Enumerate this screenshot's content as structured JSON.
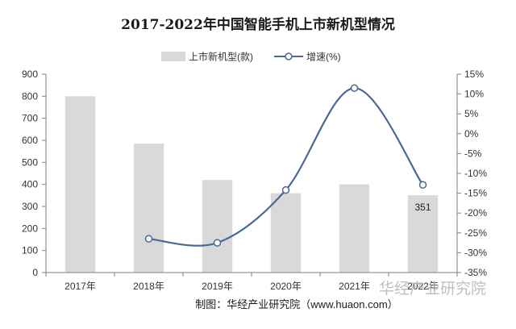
{
  "chart_data": {
    "type": "bar",
    "title": "2017-2022年中国智能手机上市新机型情况",
    "categories": [
      "2017年",
      "2018年",
      "2019年",
      "2020年",
      "2021年",
      "2022年"
    ],
    "series": [
      {
        "name": "上市新机型(款)",
        "type": "bar",
        "axis": "left",
        "values": [
          800,
          585,
          420,
          360,
          400,
          351
        ]
      },
      {
        "name": "增速(%)",
        "type": "line",
        "axis": "right",
        "values": [
          null,
          -26.5,
          -27.5,
          -14.2,
          11.5,
          -12.9
        ]
      }
    ],
    "y_left": {
      "min": 0,
      "max": 900,
      "step": 100,
      "ticks": [
        "0",
        "100",
        "200",
        "300",
        "400",
        "500",
        "600",
        "700",
        "800",
        "900"
      ]
    },
    "y_right": {
      "min": -35,
      "max": 15,
      "step": 5,
      "ticks": [
        "-35%",
        "-30%",
        "-25%",
        "-20%",
        "-15%",
        "-10%",
        "-5%",
        "0%",
        "5%",
        "10%",
        "15%"
      ]
    },
    "data_labels": [
      {
        "category": "2022年",
        "text": "351"
      }
    ],
    "grid": false,
    "legend": "top-center",
    "colors": {
      "bar": "#d9d9d9",
      "line": "#4a6894",
      "marker_fill": "#ffffff",
      "axis": "#7f7f7f"
    }
  },
  "source": "制图：华经产业研究院（www.huaon.com）",
  "watermark": "华经产业研究院"
}
